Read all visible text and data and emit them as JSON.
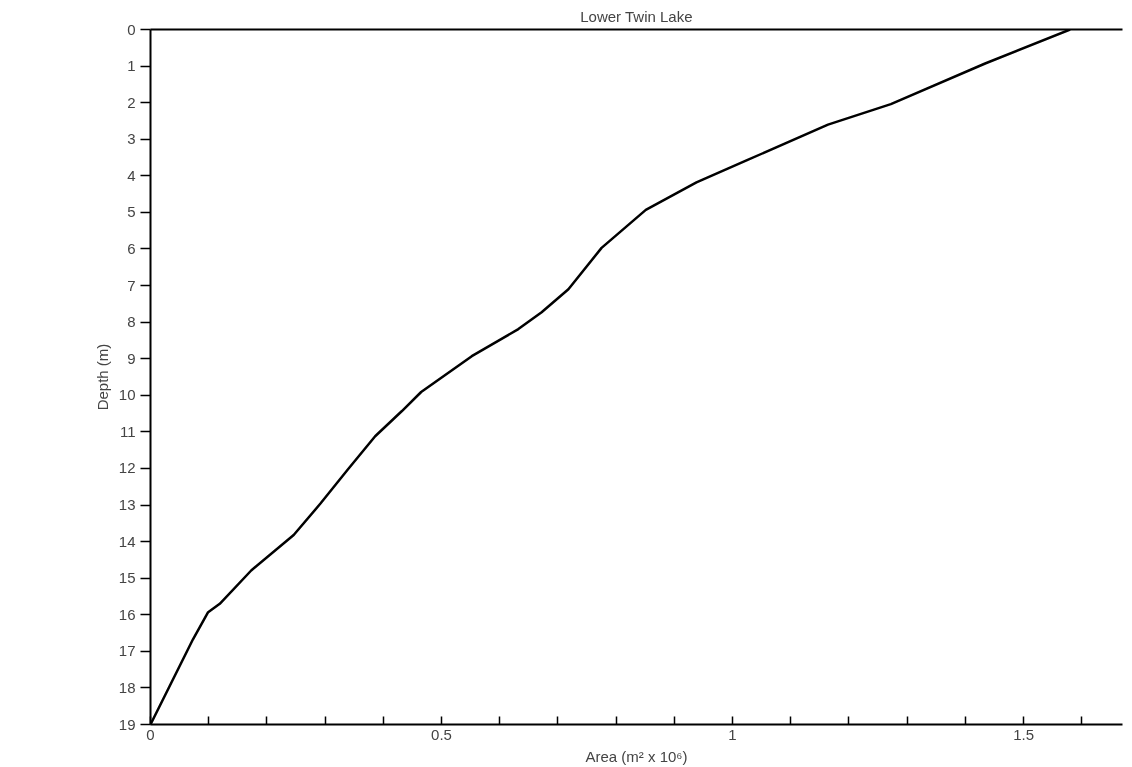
{
  "chart_data": {
    "type": "line",
    "title": "Lower Twin Lake",
    "xlabel": "Area (m² x 10⁶)",
    "ylabel": "Depth (m)",
    "x": [
      1.58,
      1.434,
      1.272,
      1.164,
      1.024,
      0.938,
      0.851,
      0.775,
      0.718,
      0.672,
      0.632,
      0.552,
      0.465,
      0.432,
      0.386,
      0.339,
      0.292,
      0.246,
      0.173,
      0.119,
      0.099,
      0.073,
      0
    ],
    "series": [
      {
        "color": "#000000",
        "values": [
          0,
          0.93,
          2.04,
          2.6,
          3.58,
          4.18,
          4.93,
          5.97,
          7.1,
          7.73,
          8.19,
          8.93,
          9.91,
          10.43,
          11.12,
          12.03,
          12.96,
          13.82,
          14.79,
          15.7,
          15.93,
          16.67,
          19
        ]
      }
    ],
    "xlim": [
      0,
      1.67
    ],
    "ylim": [
      19,
      0
    ],
    "xticks": [
      0,
      {
        "value": 0.1,
        "label": null
      },
      {
        "value": 0.2,
        "label": null
      },
      {
        "value": 0.3,
        "label": null
      },
      {
        "value": 0.4,
        "label": null
      },
      0.5,
      {
        "value": 0.6,
        "label": null
      },
      {
        "value": 0.7,
        "label": null
      },
      {
        "value": 0.8,
        "label": null
      },
      {
        "value": 0.9,
        "label": null
      },
      1,
      {
        "value": 1.1,
        "label": null
      },
      {
        "value": 1.2,
        "label": null
      },
      {
        "value": 1.3,
        "label": null
      },
      {
        "value": 1.4,
        "label": null
      },
      1.5,
      {
        "value": 1.6,
        "label": null
      }
    ],
    "yticks": [
      0,
      1,
      2,
      3,
      4,
      5,
      6,
      7,
      8,
      9,
      10,
      11,
      12,
      13,
      14,
      15,
      16,
      17,
      18,
      19
    ],
    "grid": false,
    "marker": "none",
    "line_style": "solid"
  }
}
